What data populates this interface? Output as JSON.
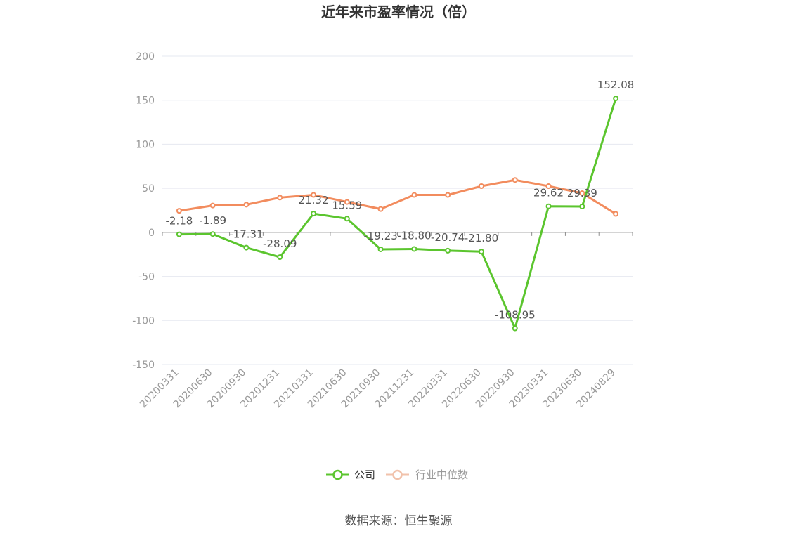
{
  "title": "近年来市盈率情况（倍）",
  "source": "数据来源：恒生聚源",
  "legend": [
    {
      "name": "公司",
      "color": "#5bc52e",
      "active": true
    },
    {
      "name": "行业中位数",
      "color": "#f1c2ab",
      "active": false
    }
  ],
  "chart_data": {
    "type": "line",
    "title": "近年来市盈率情况（倍）",
    "xlabel": "",
    "ylabel": "",
    "ylim": [
      -150,
      200
    ],
    "yticks": [
      -150,
      -100,
      -50,
      0,
      50,
      100,
      150,
      200
    ],
    "grid": true,
    "legend_position": "bottom",
    "categories": [
      "20200331",
      "20200630",
      "20200930",
      "20201231",
      "20210331",
      "20210630",
      "20210930",
      "20211231",
      "20220331",
      "20220630",
      "20220930",
      "20230331",
      "20230630",
      "20240829"
    ],
    "series": [
      {
        "name": "公司",
        "color": "#5bc52e",
        "values": [
          -2.18,
          -1.89,
          -17.31,
          -28.09,
          21.32,
          15.59,
          -19.23,
          -18.8,
          -20.74,
          -21.8,
          -108.95,
          29.62,
          29.39,
          152.08
        ],
        "labels": [
          "-2.18",
          "-1.89",
          "-17.31",
          "-28.09",
          "21.32",
          "15.59",
          "-19.23",
          "-18.80",
          "-20.74",
          "-21.80",
          "-108.95",
          "29.62",
          "29.39",
          "152.08"
        ]
      },
      {
        "name": "行业中位数",
        "color": "#f28c5e",
        "values": [
          24.5,
          30.5,
          31.5,
          39.5,
          42.5,
          34.5,
          26.5,
          42.5,
          42.5,
          52.5,
          59.5,
          52.5,
          44.5,
          21.0
        ]
      }
    ]
  }
}
